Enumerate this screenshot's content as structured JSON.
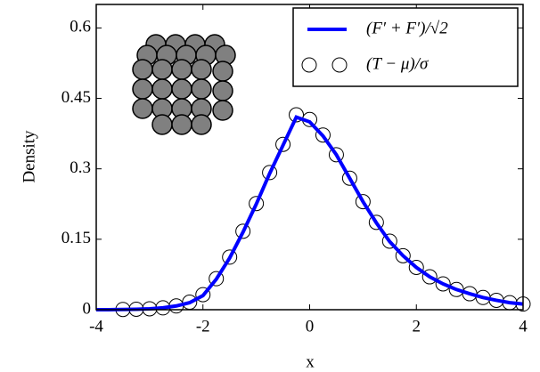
{
  "chart_data": {
    "type": "line",
    "xlabel": "x",
    "ylabel": "Density",
    "xlim": [
      -4,
      4
    ],
    "xticks": [
      -4,
      -2,
      0,
      2,
      4
    ],
    "ylim": [
      0,
      0.65
    ],
    "yticks": [
      0,
      0.15,
      0.3,
      0.45,
      0.6
    ],
    "legend": "upper right",
    "series": [
      {
        "name": "(F′ + F′)/√2",
        "type": "line",
        "color": "#0000ff",
        "x": [
          -4,
          -3.75,
          -3.5,
          -3.25,
          -3,
          -2.75,
          -2.5,
          -2.25,
          -2,
          -1.75,
          -1.5,
          -1.25,
          -1,
          -0.75,
          -0.5,
          -0.25,
          0,
          0.25,
          0.5,
          0.75,
          1,
          1.25,
          1.5,
          1.75,
          2,
          2.25,
          2.5,
          2.75,
          3,
          3.25,
          3.5,
          3.75,
          4
        ],
        "values": [
          0,
          0,
          0.0005,
          0.001,
          0.002,
          0.004,
          0.008,
          0.015,
          0.03,
          0.065,
          0.11,
          0.165,
          0.225,
          0.29,
          0.35,
          0.41,
          0.4,
          0.37,
          0.33,
          0.28,
          0.23,
          0.185,
          0.145,
          0.115,
          0.09,
          0.07,
          0.055,
          0.043,
          0.034,
          0.026,
          0.02,
          0.015,
          0.012
        ]
      },
      {
        "name": "(T − μ)/σ",
        "type": "scatter",
        "color": "#000000",
        "x": [
          -3.5,
          -3.25,
          -3,
          -2.75,
          -2.5,
          -2.25,
          -2,
          -1.75,
          -1.5,
          -1.25,
          -1,
          -0.75,
          -0.5,
          -0.25,
          0,
          0.25,
          0.5,
          0.75,
          1,
          1.25,
          1.5,
          1.75,
          2,
          2.25,
          2.5,
          2.75,
          3,
          3.25,
          3.5,
          3.75,
          4
        ],
        "values": [
          0.0005,
          0.001,
          0.002,
          0.004,
          0.008,
          0.016,
          0.032,
          0.066,
          0.112,
          0.167,
          0.226,
          0.292,
          0.352,
          0.415,
          0.405,
          0.372,
          0.33,
          0.28,
          0.23,
          0.186,
          0.146,
          0.115,
          0.09,
          0.07,
          0.055,
          0.043,
          0.034,
          0.026,
          0.02,
          0.015,
          0.012
        ]
      }
    ]
  }
}
